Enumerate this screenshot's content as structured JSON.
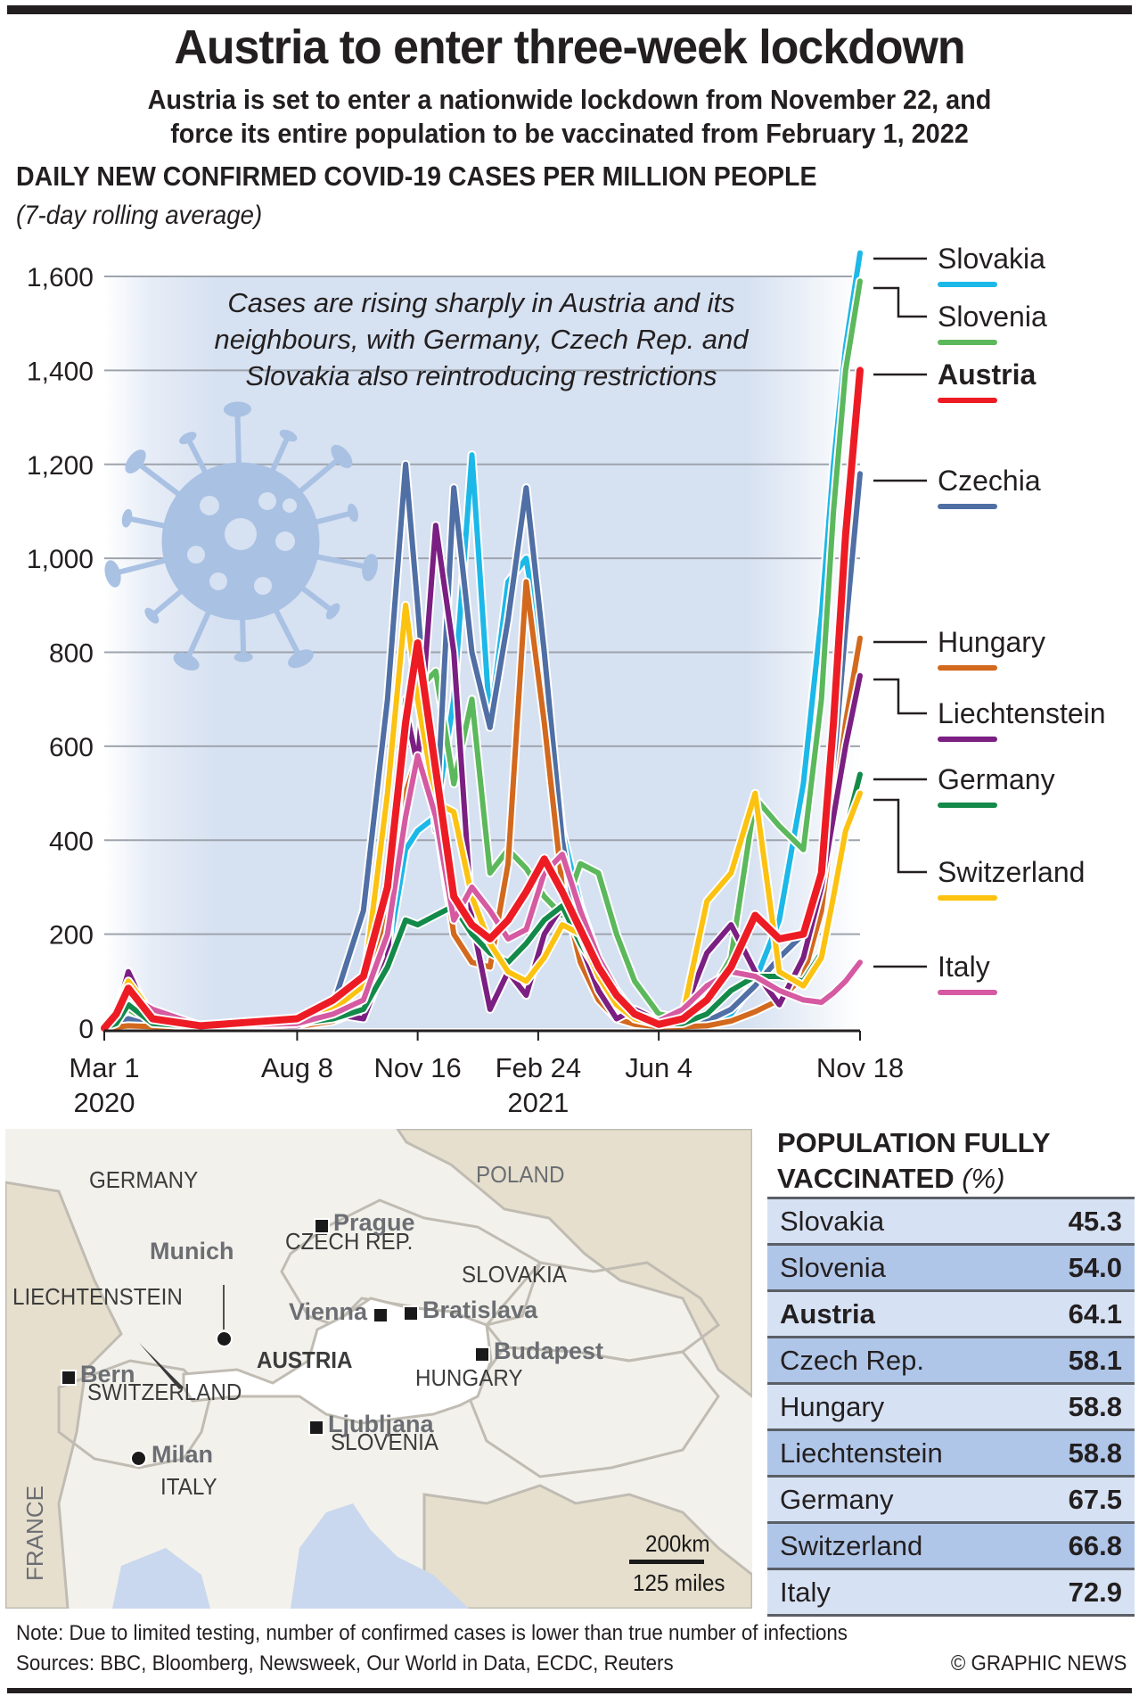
{
  "header": {
    "title": "Austria to enter three-week lockdown",
    "subtitle_line1": "Austria is set to enter a nationwide lockdown from November 22, and",
    "subtitle_line2": "force its entire population to be vaccinated from February 1, 2022"
  },
  "chart_data": {
    "type": "line",
    "title": "DAILY NEW CONFIRMED COVID-19 CASES PER MILLION PEOPLE",
    "subtitle": "(7-day rolling average)",
    "annotation": [
      "Cases are rising sharply in Austria and its",
      "neighbours, with Germany, Czech Rep. and",
      "Slovakia also reintroducing restrictions"
    ],
    "xlabel": "",
    "ylabel": "",
    "ylim": [
      0,
      1600
    ],
    "yticks": [
      0,
      200,
      400,
      600,
      800,
      1000,
      1200,
      1400,
      1600
    ],
    "ytick_labels": [
      "0",
      "200",
      "400",
      "600",
      "800",
      "1,000",
      "1,200",
      "1,400",
      "1,600"
    ],
    "xticks": [
      {
        "day": 0,
        "label": "Mar 1",
        "year": "2020"
      },
      {
        "day": 160,
        "label": "Aug 8",
        "year": ""
      },
      {
        "day": 260,
        "label": "Nov 16",
        "year": ""
      },
      {
        "day": 360,
        "label": "Feb 24",
        "year": "2021"
      },
      {
        "day": 460,
        "label": "Jun 4",
        "year": ""
      },
      {
        "day": 627,
        "label": "Nov 18",
        "year": ""
      }
    ],
    "x_unit": "days since Mar 1 2020",
    "x": [
      0,
      10,
      20,
      40,
      80,
      160,
      190,
      215,
      235,
      250,
      260,
      275,
      290,
      305,
      320,
      335,
      350,
      365,
      380,
      395,
      410,
      425,
      440,
      460,
      480,
      500,
      520,
      540,
      560,
      580,
      595,
      605,
      615,
      627
    ],
    "grid": true,
    "legend": "right",
    "series": [
      {
        "name": "Slovakia",
        "color": "#1cb8e8",
        "bold": false,
        "values": [
          0,
          3,
          5,
          2,
          1,
          5,
          15,
          40,
          150,
          380,
          420,
          450,
          700,
          1220,
          650,
          950,
          1000,
          760,
          420,
          260,
          150,
          70,
          25,
          10,
          8,
          10,
          30,
          100,
          230,
          520,
          880,
          1200,
          1450,
          1650
        ]
      },
      {
        "name": "Slovenia",
        "color": "#5cb85c",
        "bold": false,
        "values": [
          0,
          20,
          40,
          10,
          2,
          5,
          25,
          60,
          250,
          700,
          720,
          760,
          520,
          700,
          330,
          380,
          340,
          280,
          240,
          350,
          330,
          200,
          100,
          30,
          20,
          60,
          150,
          490,
          430,
          380,
          700,
          1100,
          1400,
          1590
        ]
      },
      {
        "name": "Austria",
        "color": "#ed1c24",
        "bold": true,
        "values": [
          0,
          30,
          85,
          20,
          5,
          20,
          60,
          110,
          300,
          650,
          820,
          550,
          280,
          220,
          190,
          230,
          290,
          360,
          290,
          210,
          130,
          70,
          30,
          8,
          20,
          60,
          130,
          240,
          190,
          200,
          330,
          650,
          1050,
          1400
        ]
      },
      {
        "name": "Czechia",
        "color": "#4f6fa5",
        "bold": false,
        "values": [
          0,
          5,
          20,
          5,
          2,
          5,
          50,
          250,
          700,
          1200,
          900,
          420,
          1150,
          800,
          640,
          870,
          1150,
          800,
          400,
          180,
          80,
          25,
          10,
          5,
          8,
          15,
          40,
          90,
          150,
          200,
          300,
          550,
          850,
          1180
        ]
      },
      {
        "name": "Hungary",
        "color": "#d2691e",
        "bold": false,
        "values": [
          0,
          2,
          5,
          3,
          1,
          3,
          15,
          60,
          250,
          500,
          580,
          450,
          200,
          140,
          130,
          350,
          950,
          650,
          300,
          140,
          60,
          20,
          8,
          3,
          3,
          5,
          15,
          35,
          60,
          110,
          250,
          450,
          650,
          830
        ]
      },
      {
        "name": "Liechtenstein",
        "color": "#7b1f83",
        "bold": false,
        "values": [
          0,
          30,
          120,
          10,
          5,
          5,
          30,
          20,
          150,
          680,
          560,
          1070,
          800,
          230,
          40,
          120,
          70,
          200,
          260,
          180,
          80,
          20,
          40,
          15,
          30,
          160,
          220,
          120,
          50,
          150,
          300,
          450,
          600,
          750
        ]
      },
      {
        "name": "Germany",
        "color": "#138a4a",
        "bold": false,
        "values": [
          0,
          10,
          50,
          10,
          3,
          10,
          20,
          40,
          130,
          230,
          220,
          240,
          260,
          200,
          160,
          140,
          180,
          230,
          260,
          180,
          120,
          60,
          20,
          8,
          10,
          30,
          80,
          110,
          110,
          100,
          160,
          280,
          420,
          540
        ]
      },
      {
        "name": "Switzerland",
        "color": "#fcc211",
        "bold": false,
        "values": [
          0,
          40,
          100,
          30,
          5,
          10,
          40,
          90,
          500,
          900,
          700,
          480,
          460,
          280,
          180,
          120,
          100,
          150,
          220,
          200,
          110,
          50,
          20,
          8,
          30,
          270,
          330,
          500,
          120,
          90,
          150,
          280,
          420,
          500
        ]
      },
      {
        "name": "Italy",
        "color": "#d55aa2",
        "bold": false,
        "values": [
          0,
          40,
          70,
          40,
          5,
          10,
          30,
          60,
          200,
          450,
          580,
          450,
          230,
          300,
          250,
          190,
          210,
          330,
          370,
          250,
          150,
          80,
          30,
          15,
          40,
          90,
          120,
          110,
          80,
          60,
          55,
          75,
          100,
          140
        ]
      }
    ]
  },
  "legend_labels": [
    "Slovakia",
    "Slovenia",
    "Austria",
    "Czechia",
    "Hungary",
    "Liechtenstein",
    "Germany",
    "Switzerland",
    "Italy"
  ],
  "map": {
    "countries": [
      "GERMANY",
      "POLAND",
      "CZECH REP.",
      "SLOVAKIA",
      "LIECHTENSTEIN",
      "AUSTRIA",
      "HUNGARY",
      "SWITZERLAND",
      "SLOVENIA",
      "ITALY",
      "FRANCE"
    ],
    "capitals": [
      "Prague",
      "Vienna",
      "Bratislava",
      "Budapest",
      "Bern",
      "Ljubljana"
    ],
    "cities": [
      "Munich",
      "Milan"
    ],
    "scale_km": "200km",
    "scale_miles": "125 miles"
  },
  "vaccination": {
    "title_bold": "POPULATION FULLY",
    "title_bold2": "VACCINATED",
    "title_unit": "(%)",
    "rows": [
      {
        "country": "Slovakia",
        "value": "45.3"
      },
      {
        "country": "Slovenia",
        "value": "54.0"
      },
      {
        "country": "Austria",
        "value": "64.1"
      },
      {
        "country": "Czech Rep.",
        "value": "58.1"
      },
      {
        "country": "Hungary",
        "value": "58.8"
      },
      {
        "country": "Liechtenstein",
        "value": "58.8"
      },
      {
        "country": "Germany",
        "value": "67.5"
      },
      {
        "country": "Switzerland",
        "value": "66.8"
      },
      {
        "country": "Italy",
        "value": "72.9"
      }
    ]
  },
  "footer": {
    "note": "Note: Due to limited testing, number of confirmed cases is lower than true number of infections",
    "sources": "Sources: BBC, Bloomberg, Newsweek, Our World in Data, ECDC, Reuters",
    "credit": "© GRAPHIC NEWS"
  }
}
